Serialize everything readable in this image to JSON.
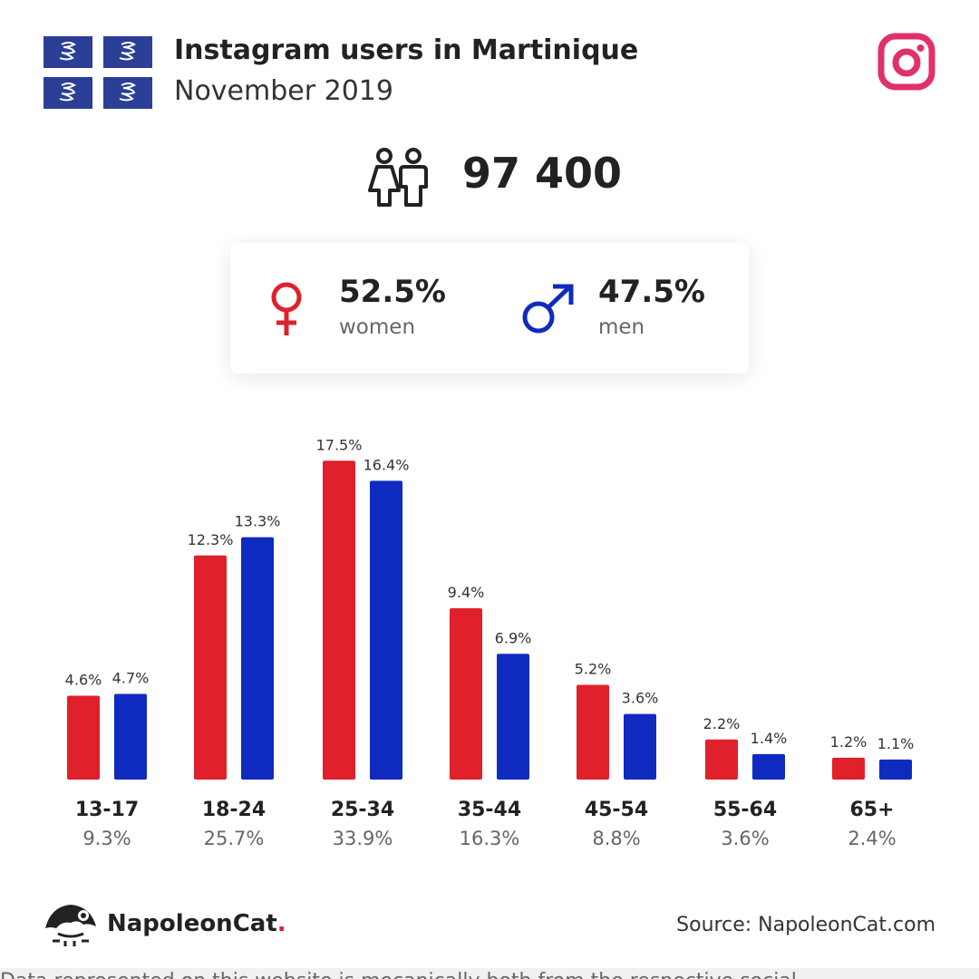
{
  "header": {
    "title": "Instagram users in Martinique",
    "subtitle": "November 2019"
  },
  "icons": {
    "flag": "martinique-flag-icon",
    "platform": "instagram-icon",
    "users": "users-icon",
    "female": "female-symbol-icon",
    "male": "male-symbol-icon",
    "logo": "napoleoncat-logo-icon"
  },
  "total": {
    "value": "97 400"
  },
  "gender": {
    "women": {
      "pct": "52.5%",
      "label": "women"
    },
    "men": {
      "pct": "47.5%",
      "label": "men"
    }
  },
  "colors": {
    "women": "#e0202a",
    "men": "#0f2bbf",
    "instagram": "#e1306c",
    "flag_blue": "#2a3f95"
  },
  "chart_data": {
    "type": "bar",
    "categories": [
      "13-17",
      "18-24",
      "25-34",
      "35-44",
      "45-54",
      "55-64",
      "65+"
    ],
    "series": [
      {
        "name": "women",
        "values": [
          4.6,
          12.3,
          17.5,
          9.4,
          5.2,
          2.2,
          1.2
        ],
        "labels": [
          "4.6%",
          "12.3%",
          "17.5%",
          "9.4%",
          "5.2%",
          "2.2%",
          "1.2%"
        ]
      },
      {
        "name": "men",
        "values": [
          4.7,
          13.3,
          16.4,
          6.9,
          3.6,
          1.4,
          1.1
        ],
        "labels": [
          "4.7%",
          "13.3%",
          "16.4%",
          "6.9%",
          "3.6%",
          "1.4%",
          "1.1%"
        ]
      }
    ],
    "totals": [
      "9.3%",
      "25.7%",
      "33.9%",
      "16.3%",
      "8.8%",
      "3.6%",
      "2.4%"
    ],
    "grid": false,
    "legend": "none"
  },
  "footer": {
    "brand": "NapoleonCat",
    "brand_dot": ".",
    "source": "Source: NapoleonCat.com",
    "cut_text": "Data represented on this website is mecanically both from the respective social"
  }
}
